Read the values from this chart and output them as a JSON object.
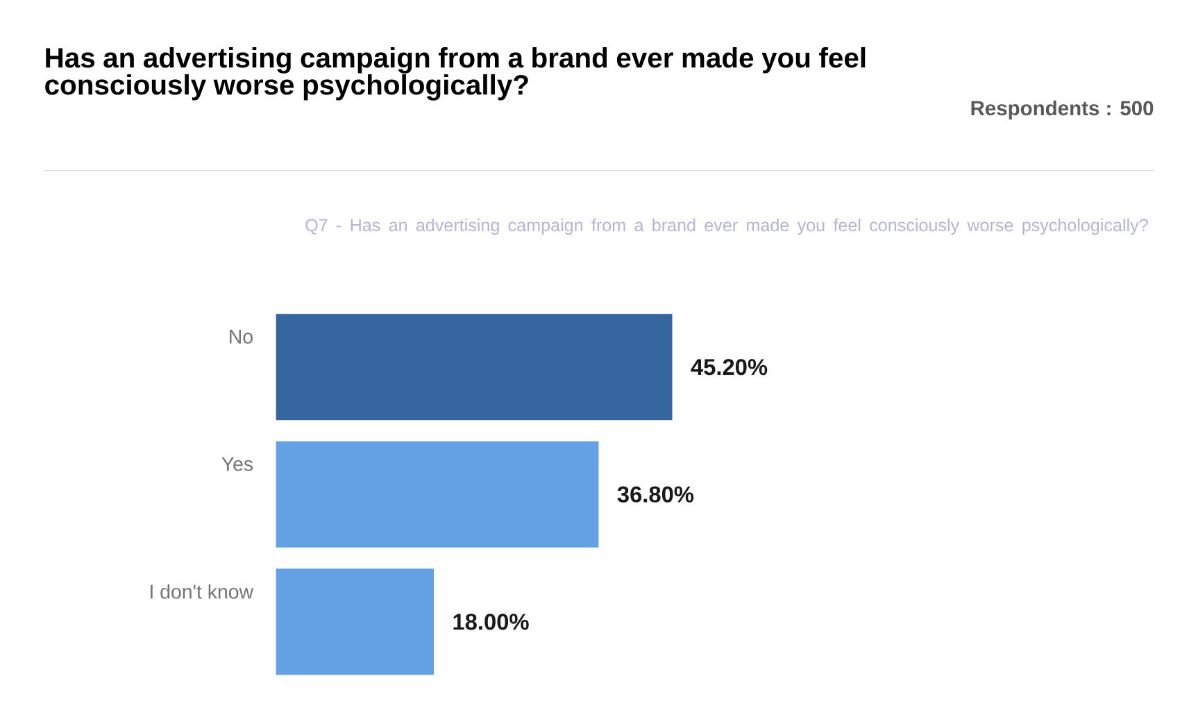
{
  "chart_data": {
    "type": "bar",
    "orientation": "horizontal",
    "title": "Has an advertising campaign from a brand ever made you feel consciously worse psychologically?",
    "subtitle": "Q7 - Has an advertising campaign from a brand ever made you feel consciously worse psychologically?",
    "annotations": [
      "Respondents : 500"
    ],
    "categories": [
      "No",
      "Yes",
      "I don't know"
    ],
    "values": [
      45.2,
      36.8,
      18.0
    ],
    "colors": [
      "#34659e",
      "#63a0e4",
      "#63a0e4"
    ],
    "value_labels": [
      "45.20%",
      "36.80%",
      "18.00%"
    ],
    "tick_labels": "y"
  }
}
